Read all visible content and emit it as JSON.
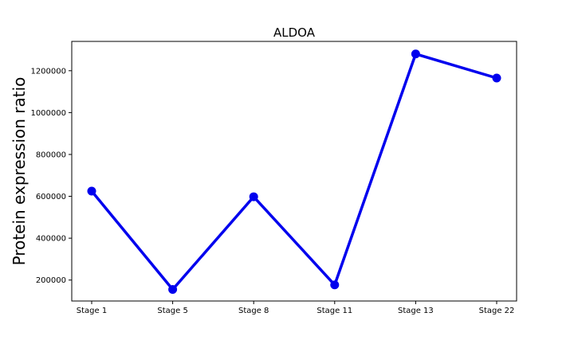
{
  "chart_data": {
    "type": "line",
    "title": "ALDOA",
    "xlabel": "",
    "ylabel": "Protein expression ratio",
    "categories": [
      "Stage 1",
      "Stage 5",
      "Stage 8",
      "Stage 11",
      "Stage 13",
      "Stage 22"
    ],
    "series": [
      {
        "values": [
          625000,
          155000,
          598000,
          177000,
          1280000,
          1165000
        ],
        "color": "#0000ee"
      }
    ],
    "ylim": [
      100000,
      1340000
    ],
    "yticks": [
      200000,
      400000,
      600000,
      800000,
      1000000,
      1200000
    ],
    "ytick_labels": [
      "200000",
      "400000",
      "600000",
      "800000",
      "1000000",
      "1200000"
    ],
    "grid": false,
    "legend": "none"
  }
}
